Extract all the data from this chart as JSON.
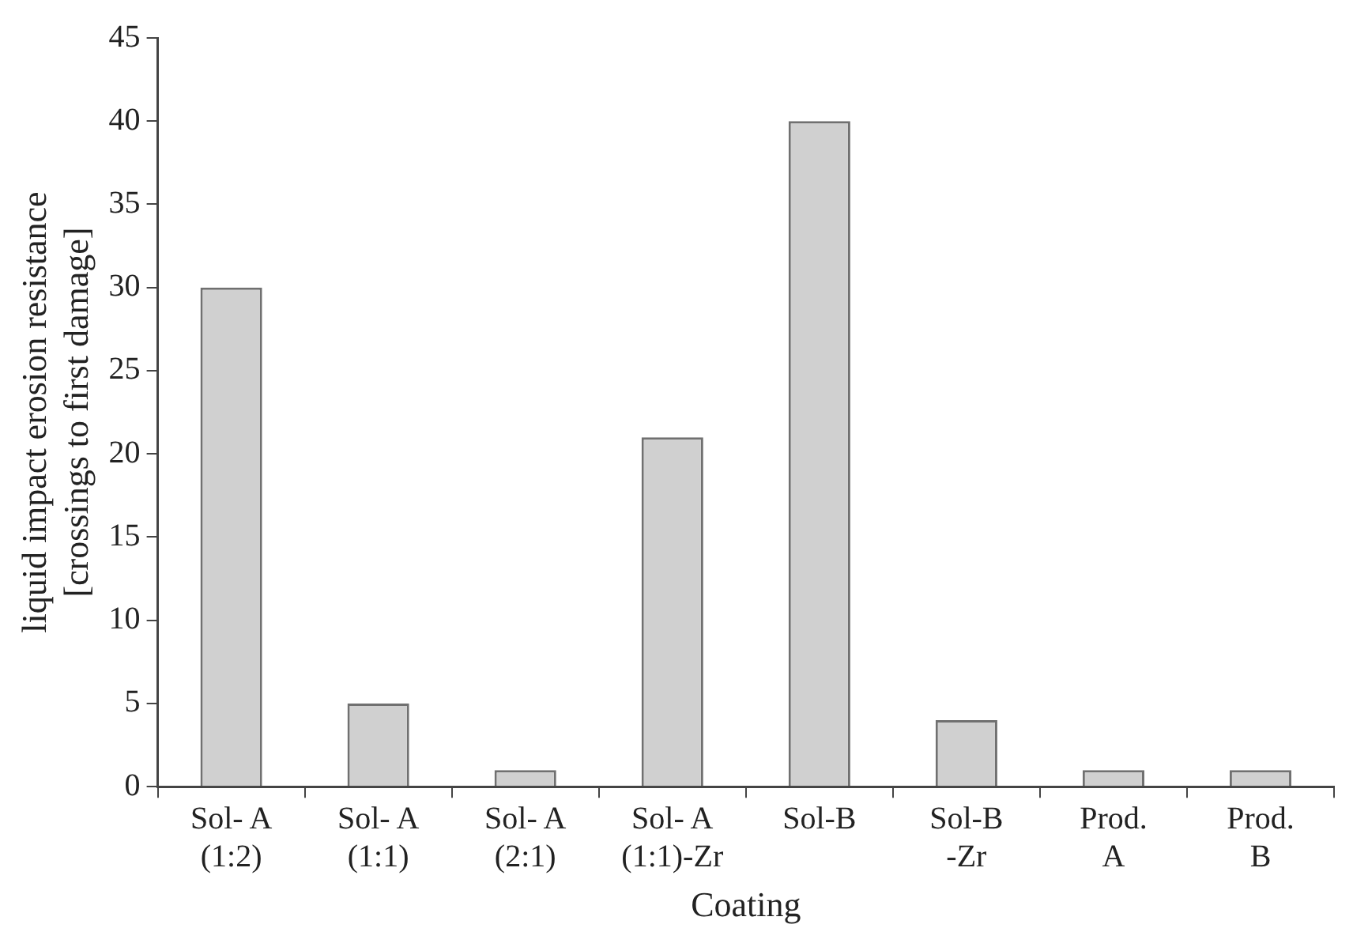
{
  "chart_data": {
    "type": "bar",
    "xlabel": "Coating",
    "ylabel": "liquid impact erosion resistance\n[crossings to first damage]",
    "categories": [
      "Sol- A\n(1:2)",
      "Sol- A\n(1:1)",
      "Sol- A\n(2:1)",
      "Sol- A\n(1:1)-Zr",
      "Sol-B",
      "Sol-B\n-Zr",
      "Prod.\nA",
      "Prod.\nB"
    ],
    "values": [
      30,
      5,
      1,
      21,
      40,
      4,
      1,
      1
    ],
    "color": "#d0d0d0",
    "ylim": [
      0,
      45
    ],
    "yticks": [
      0,
      5,
      10,
      15,
      20,
      25,
      30,
      35,
      40,
      45
    ],
    "grid": false,
    "legend": false
  }
}
